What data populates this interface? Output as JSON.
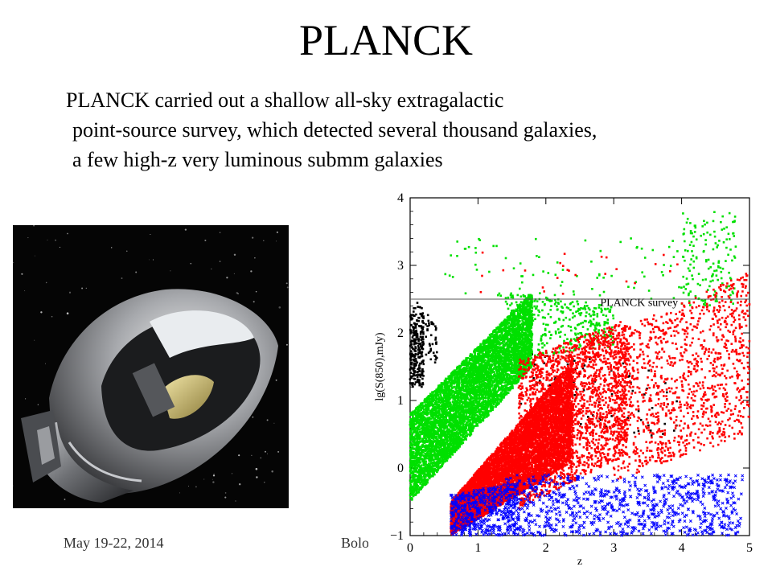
{
  "slide": {
    "title": "PLANCK",
    "body_lines": [
      "PLANCK carried out a shallow all-sky extragalactic",
      "point-source survey, which detected several thousand galaxies,",
      "a few high-z very luminous submm galaxies"
    ],
    "footer": {
      "date": "May 19-22, 2014",
      "venue": "Bolo"
    },
    "photo": {
      "icon": "planck-satellite-icon"
    }
  },
  "chart_data": {
    "type": "scatter",
    "xlabel": "z",
    "ylabel": "lg(S(850),mJy)",
    "xlim": [
      0,
      5
    ],
    "ylim": [
      -1,
      4
    ],
    "xticks": [
      0,
      1,
      2,
      3,
      4,
      5
    ],
    "yticks": [
      -1,
      0,
      1,
      2,
      3,
      4
    ],
    "grid": false,
    "annotations": [
      {
        "text": "PLANCK survey",
        "x": 2.8,
        "y": 2.4
      }
    ],
    "reference_lines": [
      {
        "orientation": "horizontal",
        "y": 2.5
      }
    ],
    "series": [
      {
        "color": "#000000",
        "marker": "dot",
        "clusters": [
          {
            "x": [
              0.0,
              0.2
            ],
            "y_low": [
              1.2,
              1.2
            ],
            "y_high": [
              2.3,
              2.3
            ],
            "count": 260
          },
          {
            "x": [
              0.05,
              0.4
            ],
            "y_low": [
              1.6,
              1.5
            ],
            "y_high": [
              2.6,
              2.1
            ],
            "count": 60
          },
          {
            "x": [
              1.5,
              4.0
            ],
            "y_low": [
              0.8,
              0.4
            ],
            "y_high": [
              1.9,
              1.4
            ],
            "count": 90
          }
        ]
      },
      {
        "color": "#00e000",
        "marker": "dot",
        "clusters": [
          {
            "x": [
              0.0,
              1.8
            ],
            "y_low": [
              -0.5,
              1.5
            ],
            "y_high": [
              0.8,
              2.6
            ],
            "count": 6500
          },
          {
            "x": [
              1.4,
              3.0
            ],
            "y_low": [
              1.6,
              1.8
            ],
            "y_high": [
              2.6,
              2.4
            ],
            "count": 360
          },
          {
            "x": [
              0.5,
              4.4
            ],
            "y_low": [
              2.5,
              2.5
            ],
            "y_high": [
              3.4,
              3.4
            ],
            "count": 90
          },
          {
            "x": [
              4.0,
              4.8
            ],
            "y_low": [
              2.4,
              2.4
            ],
            "y_high": [
              3.8,
              3.8
            ],
            "count": 150
          }
        ]
      },
      {
        "color": "#ff0000",
        "marker": "dot",
        "clusters": [
          {
            "x": [
              0.6,
              2.4
            ],
            "y_low": [
              -1.0,
              0.1
            ],
            "y_high": [
              -0.5,
              1.6
            ],
            "count": 7600
          },
          {
            "x": [
              1.6,
              3.2
            ],
            "y_low": [
              -0.6,
              0.2
            ],
            "y_high": [
              1.6,
              2.2
            ],
            "count": 2200
          },
          {
            "x": [
              3.0,
              5.0
            ],
            "y_low": [
              -0.2,
              0.5
            ],
            "y_high": [
              2.0,
              2.9
            ],
            "count": 1200
          },
          {
            "x": [
              1.0,
              4.0
            ],
            "y_low": [
              2.5,
              2.5
            ],
            "y_high": [
              3.2,
              3.2
            ],
            "count": 25
          }
        ]
      },
      {
        "color": "#0000ff",
        "marker": "cross",
        "clusters": [
          {
            "x": [
              0.6,
              1.6
            ],
            "y_low": [
              -1.0,
              -1.0
            ],
            "y_high": [
              -0.4,
              -0.2
            ],
            "count": 500
          },
          {
            "x": [
              1.4,
              4.9
            ],
            "y_low": [
              -1.0,
              -1.0
            ],
            "y_high": [
              -0.1,
              -0.1
            ],
            "count": 850
          }
        ]
      }
    ]
  }
}
